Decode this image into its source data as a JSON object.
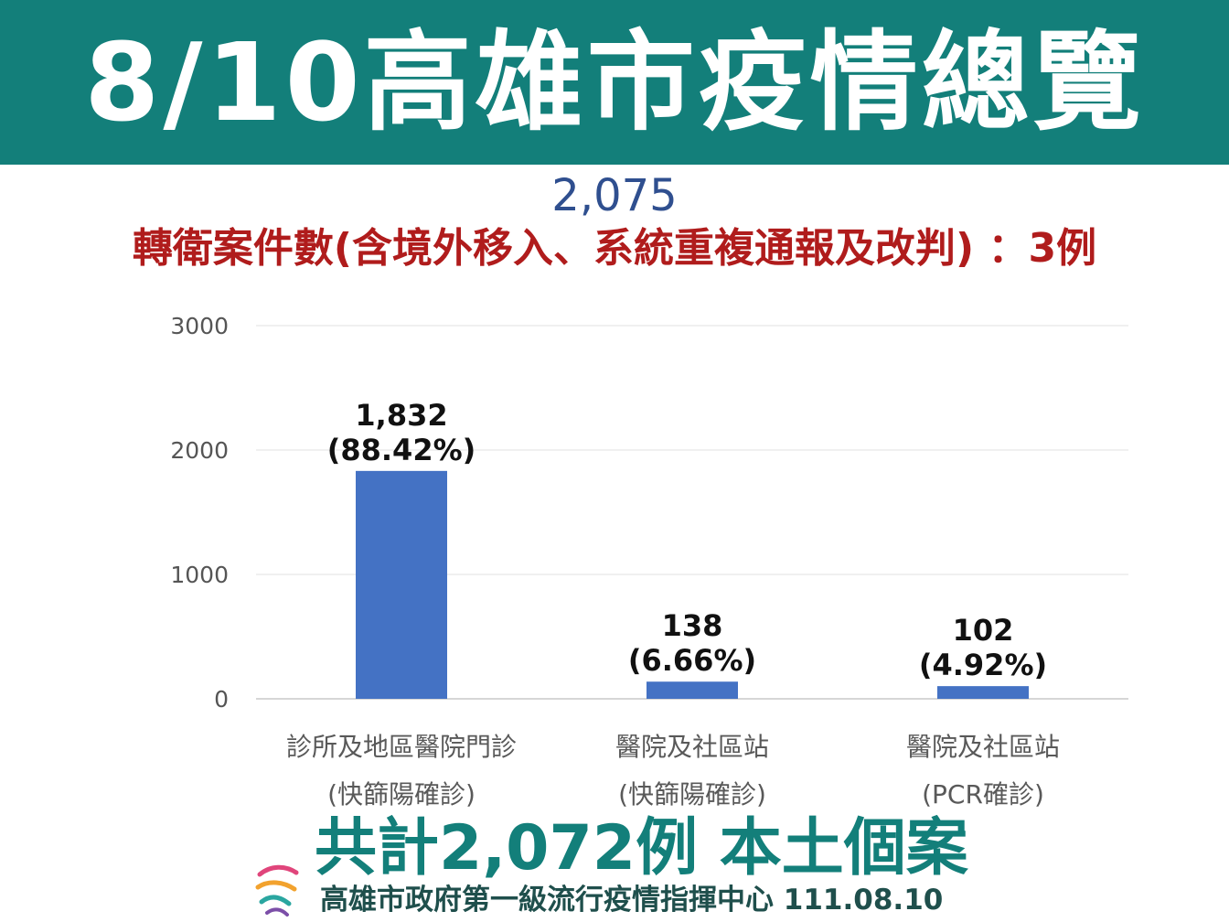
{
  "header": {
    "title": "8/10高雄市疫情總覽"
  },
  "summary": {
    "total": "2,075",
    "transfer_note": "轉衛案件數(含境外移入、系統重複通報及改判) ：3例"
  },
  "chart_data": {
    "type": "bar",
    "categories": [
      [
        "診所及地區醫院門診",
        "(快篩陽確診)"
      ],
      [
        "醫院及社區站",
        "(快篩陽確診)"
      ],
      [
        "醫院及社區站",
        "(PCR確診)"
      ]
    ],
    "values": [
      1832,
      138,
      102
    ],
    "value_labels": [
      "1,832",
      "138",
      "102"
    ],
    "percent_labels": [
      "(88.42%)",
      "(6.66%)",
      "(4.92%)"
    ],
    "ylim": [
      0,
      3000
    ],
    "yticks": [
      0,
      1000,
      2000,
      3000
    ],
    "grid": true,
    "bar_color": "#4472c4"
  },
  "footer": {
    "total_label": "共計2,072例 本土個案",
    "org": "高雄市政府第一級流行疫情指揮中心 111.08.10"
  },
  "colors": {
    "banner": "#137f7a",
    "total_text": "#2f4f8f",
    "transfer_text": "#b01c1c"
  }
}
